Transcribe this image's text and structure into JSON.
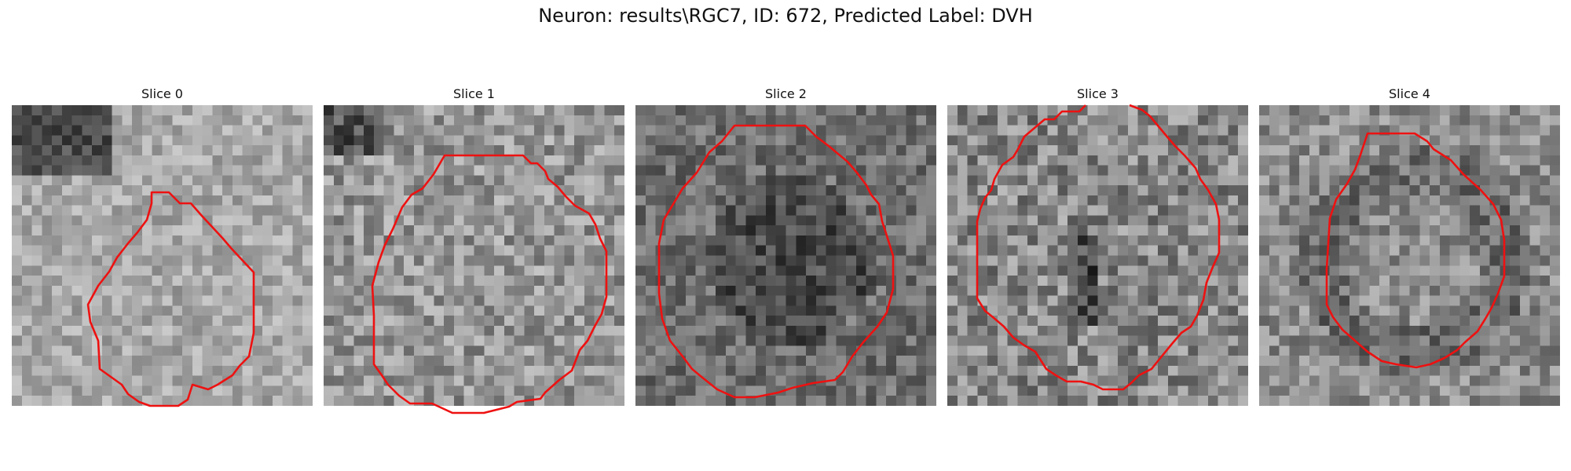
{
  "figure": {
    "title": "Neuron: results\\RGC7, ID: 672, Predicted Label: DVH"
  },
  "slices": [
    {
      "title": "Slice 0",
      "base_gray": 168,
      "contrast": 34
    },
    {
      "title": "Slice 1",
      "base_gray": 150,
      "contrast": 48
    },
    {
      "title": "Slice 2",
      "base_gray": 110,
      "contrast": 40
    },
    {
      "title": "Slice 3",
      "base_gray": 135,
      "contrast": 52
    },
    {
      "title": "Slice 4",
      "base_gray": 140,
      "contrast": 44
    }
  ],
  "colors": {
    "contour": "#ee1111",
    "background": "#ffffff"
  }
}
